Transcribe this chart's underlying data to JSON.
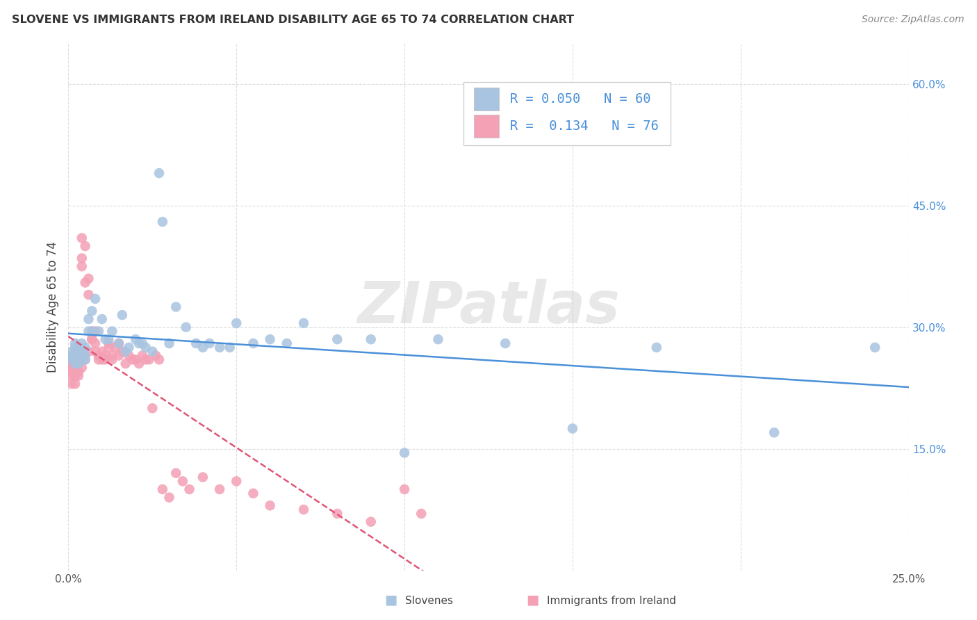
{
  "title": "SLOVENE VS IMMIGRANTS FROM IRELAND DISABILITY AGE 65 TO 74 CORRELATION CHART",
  "source": "Source: ZipAtlas.com",
  "ylabel": "Disability Age 65 to 74",
  "xlim": [
    0.0,
    0.25
  ],
  "ylim": [
    0.0,
    0.65
  ],
  "R_slovene": 0.05,
  "N_slovene": 60,
  "R_ireland": 0.134,
  "N_ireland": 76,
  "slovene_color": "#a8c4e0",
  "ireland_color": "#f4a0b5",
  "trend_slovene_color": "#4a90d9",
  "trend_ireland_color": "#e05575",
  "watermark": "ZIPatlas",
  "background_color": "#ffffff",
  "grid_color": "#dddddd",
  "right_tick_color": "#4a90d9",
  "ytick_positions": [
    0.15,
    0.3,
    0.45,
    0.6
  ],
  "ytick_labels": [
    "15.0%",
    "30.0%",
    "45.0%",
    "60.0%"
  ],
  "xtick_positions": [
    0.0,
    0.05,
    0.1,
    0.15,
    0.2,
    0.25
  ],
  "xtick_labels": [
    "0.0%",
    "",
    "",
    "",
    "",
    "25.0%"
  ],
  "slovene_x": [
    0.001,
    0.001,
    0.001,
    0.002,
    0.002,
    0.002,
    0.002,
    0.003,
    0.003,
    0.003,
    0.003,
    0.004,
    0.004,
    0.004,
    0.005,
    0.005,
    0.005,
    0.006,
    0.006,
    0.007,
    0.007,
    0.008,
    0.009,
    0.01,
    0.011,
    0.012,
    0.013,
    0.015,
    0.016,
    0.017,
    0.018,
    0.02,
    0.021,
    0.022,
    0.023,
    0.025,
    0.027,
    0.028,
    0.03,
    0.032,
    0.035,
    0.038,
    0.04,
    0.042,
    0.045,
    0.048,
    0.05,
    0.055,
    0.06,
    0.065,
    0.07,
    0.08,
    0.09,
    0.1,
    0.11,
    0.13,
    0.15,
    0.175,
    0.21,
    0.24
  ],
  "slovene_y": [
    0.27,
    0.265,
    0.26,
    0.275,
    0.255,
    0.265,
    0.28,
    0.27,
    0.26,
    0.275,
    0.255,
    0.27,
    0.28,
    0.26,
    0.265,
    0.275,
    0.26,
    0.31,
    0.295,
    0.32,
    0.295,
    0.335,
    0.295,
    0.31,
    0.285,
    0.285,
    0.295,
    0.28,
    0.315,
    0.27,
    0.275,
    0.285,
    0.28,
    0.28,
    0.275,
    0.27,
    0.49,
    0.43,
    0.28,
    0.325,
    0.3,
    0.28,
    0.275,
    0.28,
    0.275,
    0.275,
    0.305,
    0.28,
    0.285,
    0.28,
    0.305,
    0.285,
    0.285,
    0.145,
    0.285,
    0.28,
    0.175,
    0.275,
    0.17,
    0.275
  ],
  "ireland_x": [
    0.001,
    0.001,
    0.001,
    0.001,
    0.001,
    0.001,
    0.001,
    0.002,
    0.002,
    0.002,
    0.002,
    0.002,
    0.002,
    0.002,
    0.002,
    0.003,
    0.003,
    0.003,
    0.003,
    0.003,
    0.004,
    0.004,
    0.004,
    0.004,
    0.005,
    0.005,
    0.005,
    0.006,
    0.006,
    0.006,
    0.007,
    0.007,
    0.007,
    0.008,
    0.008,
    0.008,
    0.009,
    0.009,
    0.01,
    0.01,
    0.011,
    0.011,
    0.012,
    0.012,
    0.013,
    0.013,
    0.014,
    0.015,
    0.015,
    0.016,
    0.017,
    0.018,
    0.019,
    0.02,
    0.021,
    0.022,
    0.023,
    0.024,
    0.025,
    0.026,
    0.027,
    0.028,
    0.03,
    0.032,
    0.034,
    0.036,
    0.04,
    0.045,
    0.05,
    0.055,
    0.06,
    0.07,
    0.08,
    0.09,
    0.1,
    0.105
  ],
  "ireland_y": [
    0.255,
    0.265,
    0.24,
    0.255,
    0.245,
    0.23,
    0.25,
    0.255,
    0.24,
    0.265,
    0.25,
    0.27,
    0.24,
    0.26,
    0.23,
    0.245,
    0.26,
    0.24,
    0.255,
    0.275,
    0.25,
    0.385,
    0.41,
    0.375,
    0.4,
    0.355,
    0.26,
    0.34,
    0.36,
    0.27,
    0.285,
    0.285,
    0.295,
    0.28,
    0.27,
    0.295,
    0.265,
    0.26,
    0.27,
    0.26,
    0.265,
    0.26,
    0.275,
    0.28,
    0.265,
    0.26,
    0.275,
    0.28,
    0.265,
    0.27,
    0.255,
    0.265,
    0.26,
    0.26,
    0.255,
    0.265,
    0.26,
    0.26,
    0.2,
    0.265,
    0.26,
    0.1,
    0.09,
    0.12,
    0.11,
    0.1,
    0.115,
    0.1,
    0.11,
    0.095,
    0.08,
    0.075,
    0.07,
    0.06,
    0.1,
    0.07
  ]
}
